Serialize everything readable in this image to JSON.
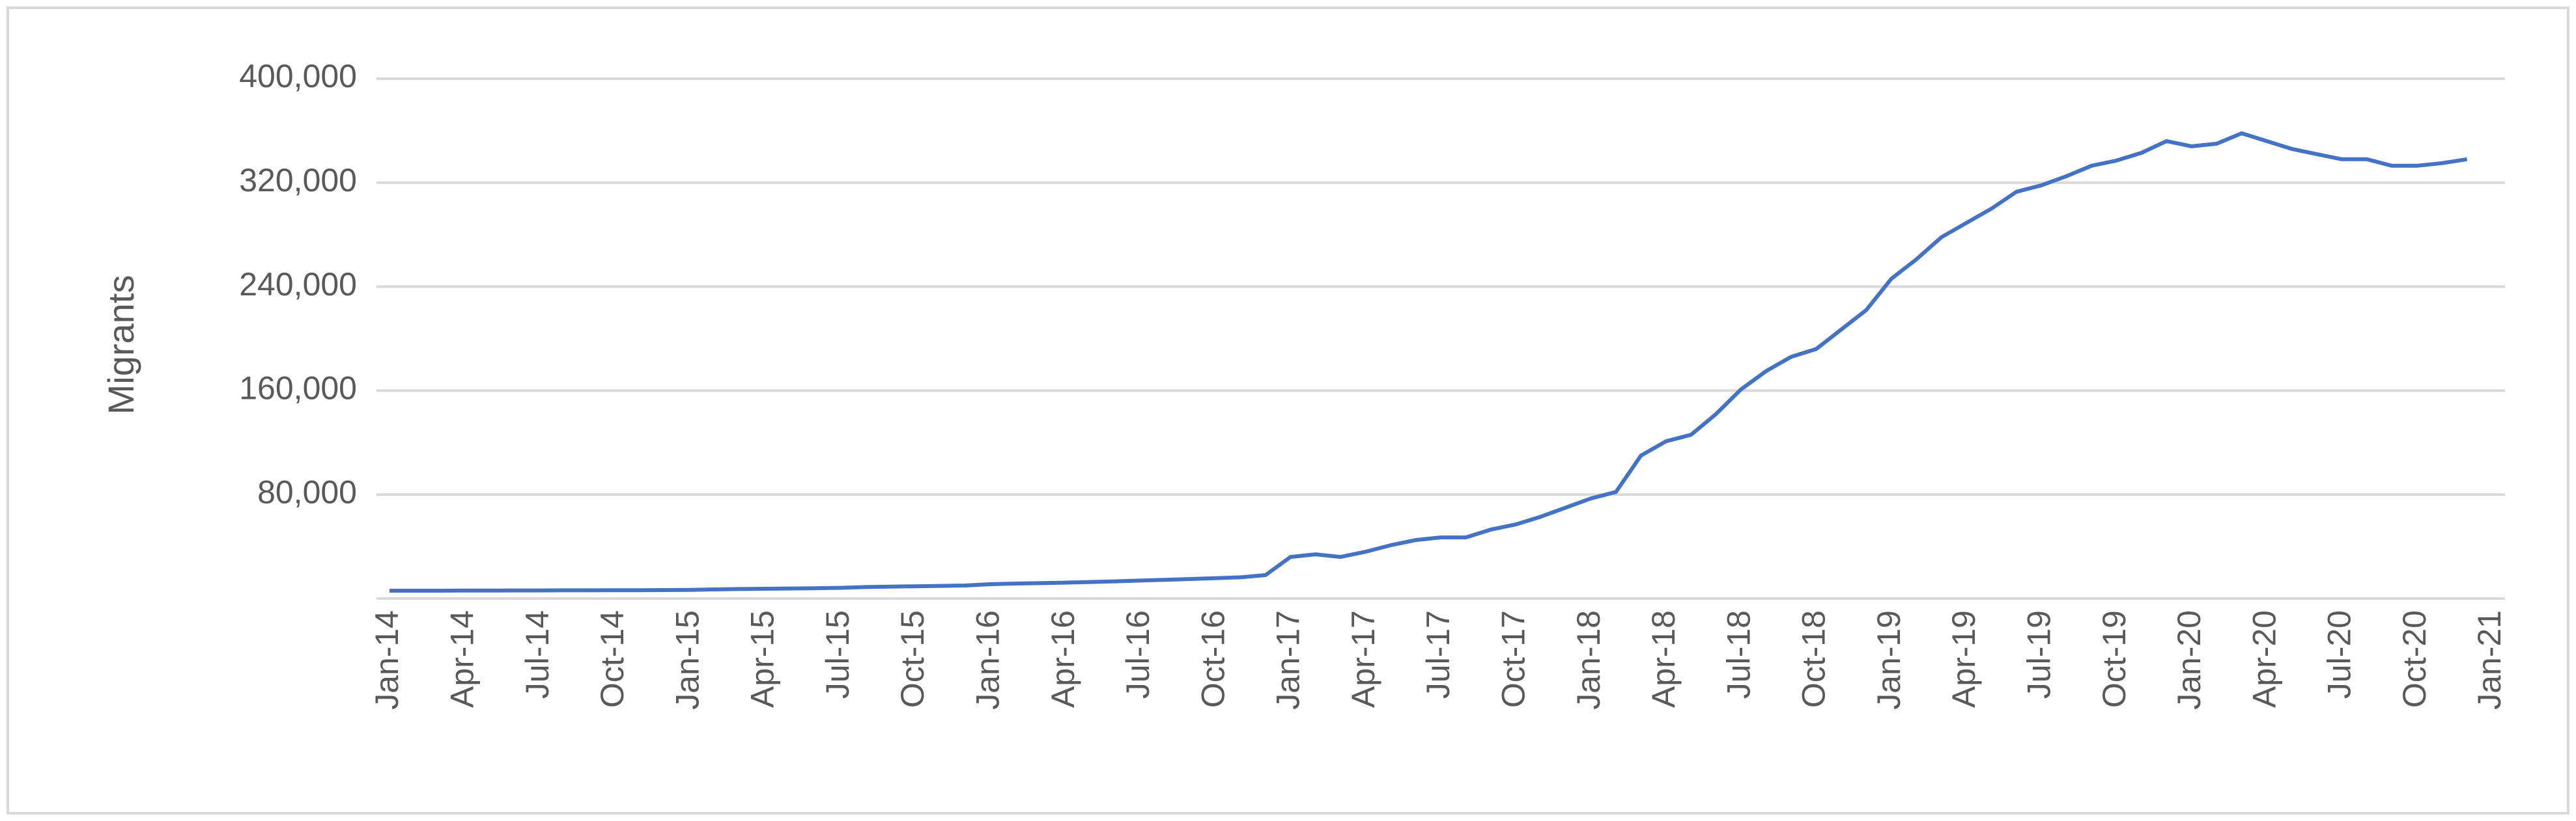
{
  "chart_data": {
    "type": "line",
    "y_label": "Migrants",
    "categories": [
      "Jan-14",
      null,
      null,
      "Apr-14",
      null,
      null,
      "Jul-14",
      null,
      null,
      "Oct-14",
      null,
      null,
      "Jan-15",
      null,
      null,
      "Apr-15",
      null,
      null,
      "Jul-15",
      null,
      null,
      "Oct-15",
      null,
      null,
      "Jan-16",
      null,
      null,
      "Apr-16",
      null,
      null,
      "Jul-16",
      null,
      null,
      "Oct-16",
      null,
      null,
      "Jan-17",
      null,
      null,
      "Apr-17",
      null,
      null,
      "Jul-17",
      null,
      null,
      "Oct-17",
      null,
      null,
      "Jan-18",
      null,
      null,
      "Apr-18",
      null,
      null,
      "Jul-18",
      null,
      null,
      "Oct-18",
      null,
      null,
      "Jan-19",
      null,
      null,
      "Apr-19",
      null,
      null,
      "Jul-19",
      null,
      null,
      "Oct-19",
      null,
      null,
      "Jan-20",
      null,
      null,
      "Apr-20",
      null,
      null,
      "Jul-20",
      null,
      null,
      "Oct-20",
      null,
      null,
      "Jan-21"
    ],
    "series": [
      {
        "name": "Migrants",
        "color": "#4472c4",
        "values": [
          6000,
          6000,
          6000,
          6100,
          6100,
          6200,
          6200,
          6300,
          6300,
          6400,
          6400,
          6500,
          6600,
          7000,
          7300,
          7500,
          7700,
          7900,
          8200,
          8800,
          9100,
          9400,
          9700,
          10000,
          11000,
          11500,
          11800,
          12200,
          12700,
          13200,
          13800,
          14400,
          15000,
          15600,
          16300,
          18000,
          32000,
          34000,
          32000,
          36000,
          41000,
          45000,
          47000,
          47000,
          53000,
          57000,
          63000,
          70000,
          77000,
          82000,
          110000,
          121000,
          126000,
          142000,
          161000,
          175000,
          186000,
          192000,
          207000,
          222000,
          246000,
          261000,
          278000,
          289000,
          300000,
          313000,
          318000,
          325000,
          333000,
          337000,
          343000,
          352000,
          348000,
          350000,
          358000,
          352000,
          346000,
          342000,
          338000,
          338000,
          333000,
          333000,
          335000,
          338000,
          null
        ]
      }
    ],
    "ylim": [
      0,
      400000
    ],
    "yticks": [
      {
        "value": 80000,
        "label": "80,000"
      },
      {
        "value": 160000,
        "label": "160,000"
      },
      {
        "value": 240000,
        "label": "240,000"
      },
      {
        "value": 320000,
        "label": "320,000"
      },
      {
        "value": 400000,
        "label": "400,000"
      }
    ],
    "grid": true
  }
}
